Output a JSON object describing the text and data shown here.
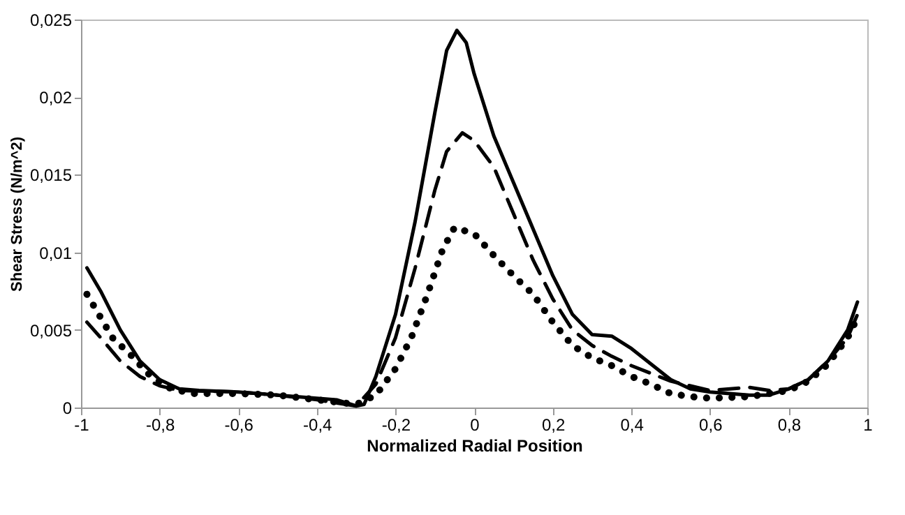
{
  "chart_data": {
    "type": "line",
    "xlabel": "Normalized Radial Position",
    "ylabel": "Shear Stress (N/m^2)",
    "xlim": [
      -1,
      1
    ],
    "ylim": [
      0,
      0.025
    ],
    "xticks": [
      {
        "value": -1,
        "label": "-1"
      },
      {
        "value": -0.8,
        "label": "-0,8"
      },
      {
        "value": -0.6,
        "label": "-0,6"
      },
      {
        "value": -0.4,
        "label": "-0,4"
      },
      {
        "value": -0.2,
        "label": "-0,2"
      },
      {
        "value": 0,
        "label": "0"
      },
      {
        "value": 0.2,
        "label": "0,2"
      },
      {
        "value": 0.4,
        "label": "0,4"
      },
      {
        "value": 0.6,
        "label": "0,6"
      },
      {
        "value": 0.8,
        "label": "0,8"
      },
      {
        "value": 1,
        "label": "1"
      }
    ],
    "yticks": [
      {
        "value": 0,
        "label": "0"
      },
      {
        "value": 0.005,
        "label": "0,005"
      },
      {
        "value": 0.01,
        "label": "0,01"
      },
      {
        "value": 0.015,
        "label": "0,015"
      },
      {
        "value": 0.02,
        "label": "0,02"
      },
      {
        "value": 0.025,
        "label": "0,025"
      }
    ],
    "grid": false,
    "marker": "none",
    "series": [
      {
        "color": "#000000",
        "line_style": "solid",
        "x": [
          -0.985,
          -0.95,
          -0.9,
          -0.85,
          -0.8,
          -0.75,
          -0.7,
          -0.6,
          -0.5,
          -0.4,
          -0.35,
          -0.3,
          -0.28,
          -0.25,
          -0.2,
          -0.15,
          -0.1,
          -0.07,
          -0.044,
          -0.02,
          0.0,
          0.05,
          0.1,
          0.15,
          0.2,
          0.25,
          0.3,
          0.35,
          0.4,
          0.45,
          0.5,
          0.55,
          0.6,
          0.7,
          0.75,
          0.8,
          0.85,
          0.9,
          0.95,
          0.975
        ],
        "values": [
          0.009,
          0.0075,
          0.005,
          0.003,
          0.0018,
          0.0012,
          0.0011,
          0.001,
          0.0008,
          0.0006,
          0.0005,
          0.0001,
          0.0002,
          0.002,
          0.006,
          0.012,
          0.019,
          0.023,
          0.0243,
          0.0235,
          0.0215,
          0.0175,
          0.0145,
          0.0115,
          0.0085,
          0.006,
          0.0047,
          0.0046,
          0.0038,
          0.0028,
          0.0018,
          0.0012,
          0.001,
          0.0008,
          0.0008,
          0.0012,
          0.0018,
          0.003,
          0.005,
          0.0068
        ]
      },
      {
        "color": "#000000",
        "line_style": "dashed",
        "x": [
          -0.985,
          -0.95,
          -0.9,
          -0.85,
          -0.8,
          -0.75,
          -0.6,
          -0.5,
          -0.4,
          -0.3,
          -0.25,
          -0.2,
          -0.15,
          -0.1,
          -0.07,
          -0.03,
          0.0,
          0.05,
          0.1,
          0.15,
          0.2,
          0.25,
          0.3,
          0.35,
          0.4,
          0.5,
          0.6,
          0.7,
          0.75,
          0.8,
          0.85,
          0.9,
          0.95,
          0.975
        ],
        "values": [
          0.0055,
          0.0045,
          0.003,
          0.002,
          0.0014,
          0.0011,
          0.001,
          0.0008,
          0.0005,
          0.0001,
          0.0015,
          0.0045,
          0.009,
          0.014,
          0.0165,
          0.0177,
          0.0172,
          0.0155,
          0.0125,
          0.0095,
          0.007,
          0.005,
          0.004,
          0.0033,
          0.0027,
          0.0017,
          0.0011,
          0.0013,
          0.0011,
          0.0012,
          0.0018,
          0.003,
          0.0045,
          0.006
        ]
      },
      {
        "color": "#000000",
        "line_style": "dotted",
        "x": [
          -0.985,
          -0.95,
          -0.92,
          -0.87,
          -0.83,
          -0.78,
          -0.72,
          -0.6,
          -0.5,
          -0.4,
          -0.3,
          -0.25,
          -0.2,
          -0.16,
          -0.12,
          -0.08,
          -0.05,
          0.0,
          0.05,
          0.1,
          0.15,
          0.2,
          0.25,
          0.3,
          0.35,
          0.4,
          0.45,
          0.5,
          0.55,
          0.6,
          0.7,
          0.8,
          0.85,
          0.9,
          0.95,
          0.975
        ],
        "values": [
          0.0073,
          0.0058,
          0.0045,
          0.0033,
          0.0022,
          0.0013,
          0.0009,
          0.0009,
          0.0008,
          0.0005,
          0.0002,
          0.0008,
          0.0025,
          0.0045,
          0.0072,
          0.0102,
          0.0116,
          0.0112,
          0.0098,
          0.0085,
          0.0073,
          0.0055,
          0.004,
          0.0032,
          0.0027,
          0.002,
          0.0015,
          0.0009,
          0.0007,
          0.0006,
          0.0007,
          0.0011,
          0.0017,
          0.0028,
          0.0045,
          0.0058
        ]
      }
    ]
  }
}
